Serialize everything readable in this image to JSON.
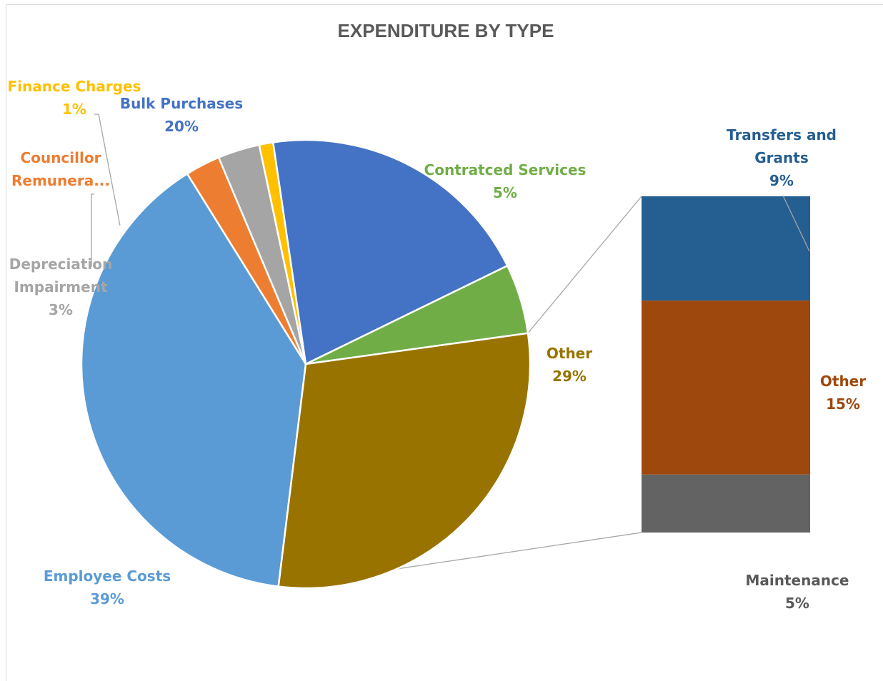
{
  "chart_data": {
    "type": "pie",
    "subtype": "bar-of-pie",
    "title": "EXPENDITURE BY TYPE",
    "slices": [
      {
        "name": "Employee Costs",
        "label_lines": [
          "Employee Costs"
        ],
        "percent_label": "39%",
        "value": 39,
        "color": "#5B9BD5"
      },
      {
        "name": "Councillor Remunera...",
        "label_lines": [
          "Councillor",
          "Remunera..."
        ],
        "percent_label": "",
        "value": 2.5,
        "color": "#ED7D31"
      },
      {
        "name": "Depreciation Impairment",
        "label_lines": [
          "Depreciation",
          "Impairment"
        ],
        "percent_label": "3%",
        "value": 3,
        "color": "#A5A5A5"
      },
      {
        "name": "Finance Charges",
        "label_lines": [
          "Finance Charges"
        ],
        "percent_label": "1%",
        "value": 1,
        "color": "#FFC000"
      },
      {
        "name": "Bulk Purchases",
        "label_lines": [
          "Bulk Purchases"
        ],
        "percent_label": "20%",
        "value": 20,
        "color": "#4472C4"
      },
      {
        "name": "Contratced Services",
        "label_lines": [
          "Contratced Services"
        ],
        "percent_label": "5%",
        "value": 5,
        "color": "#70AD47"
      },
      {
        "name": "Other",
        "label_lines": [
          "Other"
        ],
        "percent_label": "29%",
        "value": 29,
        "color": "#997300"
      }
    ],
    "bar_breakdown": [
      {
        "name": "Transfers and Grants",
        "label_lines": [
          "Transfers and",
          "Grants"
        ],
        "percent_label": "9%",
        "value": 9,
        "color": "#255E91"
      },
      {
        "name": "Other",
        "label_lines": [
          "Other"
        ],
        "percent_label": "15%",
        "value": 15,
        "color": "#9E480E"
      },
      {
        "name": "Maintenance",
        "label_lines": [
          "Maintenance"
        ],
        "percent_label": "5%",
        "value": 5,
        "color": "#636363"
      }
    ]
  }
}
